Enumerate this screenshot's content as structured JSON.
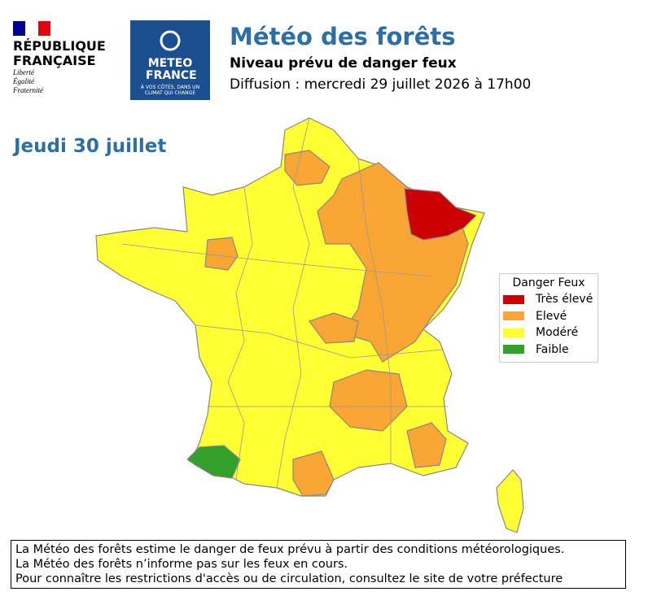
{
  "header": {
    "republique": {
      "name": "RÉPUBLIQUE FRANÇAISE",
      "motto": [
        "Liberté",
        "Égalité",
        "Fraternité"
      ]
    },
    "meteo_logo": {
      "name": "METEO FRANCE",
      "tagline": "À VOS CÔTÉS, DANS UN CLIMAT QUI CHANGE"
    },
    "title": "Météo des forêts",
    "subtitle": "Niveau prévu de danger feux",
    "diffusion": "Diffusion : mercredi 29 juillet 2026 à 17h00"
  },
  "map": {
    "date": "Jeudi 30 juillet",
    "legend": {
      "title": "Danger Feux",
      "items": [
        {
          "label": "Très élevé",
          "color": "#cc0000"
        },
        {
          "label": "Elevé",
          "color": "#f9a635"
        },
        {
          "label": "Modéré",
          "color": "#ffff33"
        },
        {
          "label": "Faible",
          "color": "#33a02c"
        }
      ]
    }
  },
  "footer": [
    "La Météo des forêts estime le danger de feux prévu à partir des conditions météorologiques.",
    "La Météo des forêts n’informe pas sur les feux en cours.",
    "Pour connaître les restrictions d'accès ou de circulation, consultez le site de votre préfecture"
  ]
}
